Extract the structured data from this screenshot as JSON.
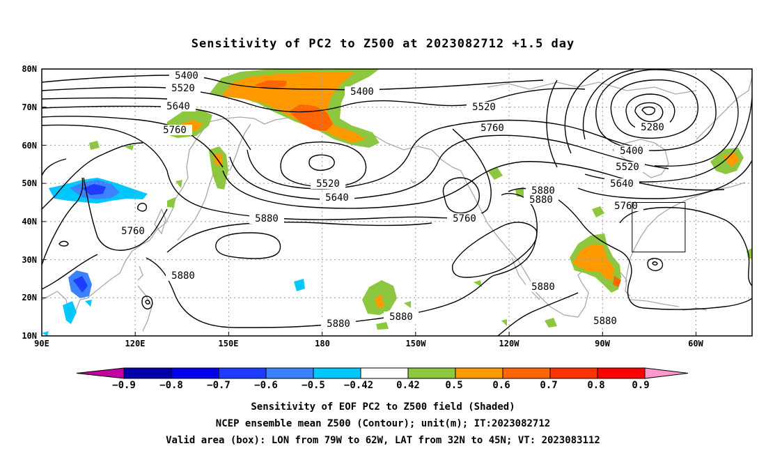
{
  "title": "Sensitivity of PC2 to Z500 at 2023082712 +1.5 day",
  "map": {
    "lon_ticks": [
      "90E",
      "120E",
      "150E",
      "180",
      "150W",
      "120W",
      "90W",
      "60W"
    ],
    "lat_ticks": [
      "80N",
      "70N",
      "60N",
      "50N",
      "40N",
      "30N",
      "20N",
      "10N"
    ],
    "lon_range_deg_east": [
      90,
      318
    ],
    "lat_range_deg_north": [
      10,
      80
    ],
    "grid": "dotted",
    "valid_area": {
      "lon": [
        "79W",
        "62W"
      ],
      "lat": [
        "32N",
        "45N"
      ]
    }
  },
  "contours": {
    "unit": "m",
    "levels": [
      "5280",
      "5400",
      "5520",
      "5640",
      "5760",
      "5880"
    ]
  },
  "colorbar": {
    "colors": [
      "#c000a0",
      "#0000a8",
      "#0000e6",
      "#1e3cff",
      "#3c82ff",
      "#00c8ff",
      "#ffffff",
      "#8dc63f",
      "#ff9900",
      "#ff6600",
      "#ff3300",
      "#ff0000",
      "#ff99cc"
    ],
    "labels": [
      "−0.9",
      "−0.8",
      "−0.7",
      "−0.6",
      "−0.5",
      "−0.42",
      "0.42",
      "0.5",
      "0.6",
      "0.7",
      "0.8",
      "0.9"
    ]
  },
  "captions": [
    "Sensitivity of EOF PC2 to Z500 field (Shaded)",
    "NCEP ensemble mean Z500 (Contour); unit(m); IT:2023082712",
    "Valid area (box): LON from 79W to 62W, LAT from 32N to 45N; VT: 2023083112"
  ]
}
